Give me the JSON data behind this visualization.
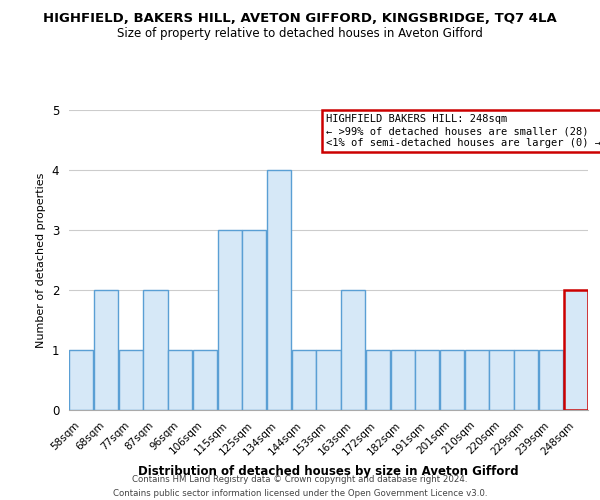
{
  "title": "HIGHFIELD, BAKERS HILL, AVETON GIFFORD, KINGSBRIDGE, TQ7 4LA",
  "subtitle": "Size of property relative to detached houses in Aveton Gifford",
  "xlabel": "Distribution of detached houses by size in Aveton Gifford",
  "ylabel": "Number of detached properties",
  "bar_labels": [
    "58sqm",
    "68sqm",
    "77sqm",
    "87sqm",
    "96sqm",
    "106sqm",
    "115sqm",
    "125sqm",
    "134sqm",
    "144sqm",
    "153sqm",
    "163sqm",
    "172sqm",
    "182sqm",
    "191sqm",
    "201sqm",
    "210sqm",
    "220sqm",
    "229sqm",
    "239sqm",
    "248sqm"
  ],
  "bar_values": [
    1,
    2,
    1,
    2,
    1,
    1,
    3,
    3,
    4,
    1,
    1,
    2,
    1,
    1,
    1,
    1,
    1,
    1,
    1,
    1,
    2
  ],
  "bar_color": "#d6e8f7",
  "bar_edge_color": "#5a9fd4",
  "highlight_index": 20,
  "highlight_edge_color": "#cc0000",
  "ylim": [
    0,
    5
  ],
  "yticks": [
    0,
    1,
    2,
    3,
    4,
    5
  ],
  "legend_title": "HIGHFIELD BAKERS HILL: 248sqm",
  "legend_line1": "← >99% of detached houses are smaller (28)",
  "legend_line2": "<1% of semi-detached houses are larger (0) →",
  "legend_box_edge": "#cc0000",
  "footer_line1": "Contains HM Land Registry data © Crown copyright and database right 2024.",
  "footer_line2": "Contains public sector information licensed under the Open Government Licence v3.0.",
  "background_color": "#ffffff",
  "grid_color": "#cccccc"
}
